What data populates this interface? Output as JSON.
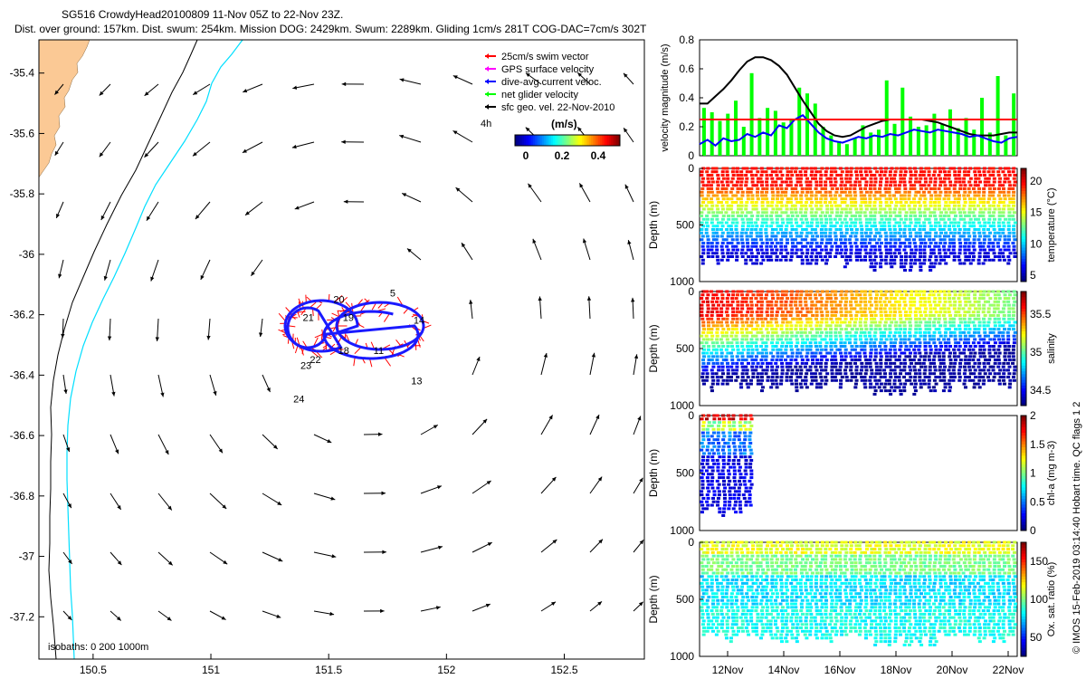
{
  "header": {
    "title_line1": "SG516 CrowdyHead20100809 11-Nov 05Z to 22-Nov 23Z.",
    "title_line2": "Dist. over ground: 157km. Dist. swum: 254km. Mission DOG: 2429km. Swum: 2289km. Gliding 1cm/s 281T COG-DAC=7cm/s 302T"
  },
  "colors": {
    "land": "#fbc995",
    "isobath_200": "#000000",
    "isobath_1000": "#00dfff",
    "track": "#1a1aff",
    "swim_vector": "#ff0000",
    "gps_velocity": "#ff00ff",
    "net_velocity": "#00ff00",
    "threshold_line": "#ff0000",
    "velocity_smooth": "#000000",
    "velocity_dac": "#0000ff"
  },
  "map": {
    "legend": [
      {
        "label": "25cm/s swim vector",
        "color": "#ff0000"
      },
      {
        "label": "GPS surface velocity",
        "color": "#ff00ff"
      },
      {
        "label": "dive-avg current veloc.",
        "color": "#0000ff"
      },
      {
        "label": "net glider velocity",
        "color": "#00ff00"
      },
      {
        "label": "sfc geo. vel. 22-Nov-2010",
        "color": "#000000"
      }
    ],
    "colorbar_title": "(m/s)",
    "colorbar_ticks": [
      "0",
      "0.2",
      "0.4"
    ],
    "four_h_label": "4h",
    "isobaths_label": "isobaths: 0   200  1000m",
    "x_ticks": [
      "150.5",
      "151",
      "151.5",
      "152",
      "152.5"
    ],
    "y_ticks": [
      "-35.4",
      "-35.6",
      "-35.8",
      "-36",
      "-36.2",
      "-36.4",
      "-36.6",
      "-36.8",
      "-37",
      "-37.2"
    ],
    "day_labels": [
      {
        "text": "20",
        "lon": 151.52,
        "lat": -36.16
      },
      {
        "text": "21",
        "lon": 151.39,
        "lat": -36.22
      },
      {
        "text": "19",
        "lon": 151.56,
        "lat": -36.22
      },
      {
        "text": "5",
        "lon": 151.76,
        "lat": -36.14
      },
      {
        "text": "14",
        "lon": 151.86,
        "lat": -36.23
      },
      {
        "text": "18",
        "lon": 151.54,
        "lat": -36.33
      },
      {
        "text": "11",
        "lon": 151.69,
        "lat": -36.33
      },
      {
        "text": "22",
        "lon": 151.42,
        "lat": -36.36
      },
      {
        "text": "23",
        "lon": 151.38,
        "lat": -36.38
      },
      {
        "text": "13",
        "lon": 151.85,
        "lat": -36.43
      },
      {
        "text": "24",
        "lon": 151.35,
        "lat": -36.49
      }
    ]
  },
  "chart_data": [
    {
      "type": "line",
      "ylabel": "velocity magnitude (m/s)",
      "ylim": [
        0,
        0.8
      ],
      "y_ticks": [
        "0",
        "0.2",
        "0.4",
        "0.6",
        "0.8"
      ],
      "threshold": 0.25,
      "series": [
        {
          "color": "#000000",
          "x": [
            0,
            0.3,
            0.6,
            0.9,
            1.2,
            1.5,
            1.8,
            2.1,
            2.4,
            2.7,
            3.0,
            3.3,
            3.6,
            3.9,
            4.2,
            4.5,
            4.8,
            5.1,
            5.4,
            5.7,
            6.0,
            6.3,
            6.6,
            6.9,
            7.2,
            7.5,
            7.8,
            8.1,
            8.4,
            8.7,
            9.0,
            9.3,
            9.6,
            9.9,
            10.2,
            10.5,
            10.8,
            11.1,
            11.4,
            11.7,
            12.0
          ],
          "y": [
            0.36,
            0.36,
            0.41,
            0.46,
            0.52,
            0.59,
            0.65,
            0.68,
            0.68,
            0.66,
            0.62,
            0.56,
            0.47,
            0.38,
            0.3,
            0.22,
            0.17,
            0.14,
            0.13,
            0.14,
            0.17,
            0.2,
            0.22,
            0.24,
            0.25,
            0.25,
            0.25,
            0.25,
            0.25,
            0.24,
            0.23,
            0.21,
            0.19,
            0.17,
            0.15,
            0.14,
            0.14,
            0.14,
            0.15,
            0.16,
            0.16
          ]
        },
        {
          "color": "#0000ff",
          "x": [
            0,
            0.3,
            0.6,
            0.9,
            1.2,
            1.5,
            1.8,
            2.1,
            2.4,
            2.7,
            3.0,
            3.3,
            3.6,
            3.9,
            4.2,
            4.5,
            4.8,
            5.1,
            5.4,
            5.7,
            6.0,
            6.3,
            6.6,
            6.9,
            7.2,
            7.5,
            7.8,
            8.1,
            8.4,
            8.7,
            9.0,
            9.3,
            9.6,
            9.9,
            10.2,
            10.5,
            10.8,
            11.1,
            11.4,
            11.7,
            12.0
          ],
          "y": [
            0.08,
            0.11,
            0.07,
            0.12,
            0.1,
            0.11,
            0.15,
            0.13,
            0.16,
            0.14,
            0.21,
            0.19,
            0.25,
            0.28,
            0.22,
            0.16,
            0.12,
            0.1,
            0.09,
            0.11,
            0.13,
            0.12,
            0.14,
            0.13,
            0.15,
            0.14,
            0.16,
            0.18,
            0.17,
            0.16,
            0.18,
            0.17,
            0.16,
            0.15,
            0.13,
            0.14,
            0.12,
            0.1,
            0.09,
            0.12,
            0.13
          ]
        }
      ],
      "bars": {
        "color": "#00ff00",
        "x": [
          0.1,
          0.4,
          0.7,
          1.0,
          1.3,
          1.6,
          1.9,
          2.2,
          2.5,
          2.8,
          3.1,
          3.4,
          3.7,
          4.0,
          4.3,
          4.6,
          4.9,
          5.2,
          5.5,
          5.8,
          6.1,
          6.4,
          6.7,
          7.0,
          7.3,
          7.6,
          7.9,
          8.2,
          8.5,
          8.8,
          9.1,
          9.4,
          9.7,
          10.0,
          10.3,
          10.6,
          10.9,
          11.2,
          11.5,
          11.8
        ],
        "y": [
          0.33,
          0.3,
          0.24,
          0.29,
          0.38,
          0.2,
          0.57,
          0.26,
          0.33,
          0.31,
          0.23,
          0.25,
          0.47,
          0.43,
          0.36,
          0.2,
          0.14,
          0.1,
          0.08,
          0.12,
          0.21,
          0.16,
          0.18,
          0.52,
          0.22,
          0.47,
          0.27,
          0.2,
          0.21,
          0.29,
          0.22,
          0.32,
          0.19,
          0.26,
          0.18,
          0.4,
          0.16,
          0.55,
          0.14,
          0.43
        ]
      }
    },
    {
      "type": "heatmap",
      "ylabel": "Depth (m)",
      "y_ticks": [
        "0",
        "500",
        "1000"
      ],
      "colorbar_label": "temperature (°C)",
      "colorbar_ticks": [
        "5",
        "10",
        "15",
        "20"
      ],
      "clim": [
        4,
        22
      ]
    },
    {
      "type": "heatmap",
      "ylabel": "Depth (m)",
      "y_ticks": [
        "0",
        "500",
        "1000"
      ],
      "colorbar_label": "salinity",
      "colorbar_ticks": [
        "34.5",
        "35",
        "35.5"
      ],
      "clim": [
        34.3,
        35.8
      ]
    },
    {
      "type": "heatmap",
      "ylabel": "Depth (m)",
      "y_ticks": [
        "0",
        "500",
        "1000"
      ],
      "colorbar_label": "chl-a (mg m-3)",
      "colorbar_ticks": [
        "0",
        "0.5",
        "1",
        "1.5",
        "2"
      ],
      "clim": [
        0,
        2
      ]
    },
    {
      "type": "heatmap",
      "ylabel": "Depth (m)",
      "y_ticks": [
        "0",
        "500",
        "1000"
      ],
      "colorbar_label": "Ox. sat. ratio (%)",
      "colorbar_ticks": [
        "50",
        "100",
        "150"
      ],
      "clim": [
        25,
        175
      ],
      "x_ticks": [
        "12Nov",
        "14Nov",
        "16Nov",
        "18Nov",
        "20Nov",
        "22Nov"
      ]
    }
  ],
  "side_note": "© IMOS 15-Feb-2019 03:14:40 Hobart time. QC flags 1  2"
}
